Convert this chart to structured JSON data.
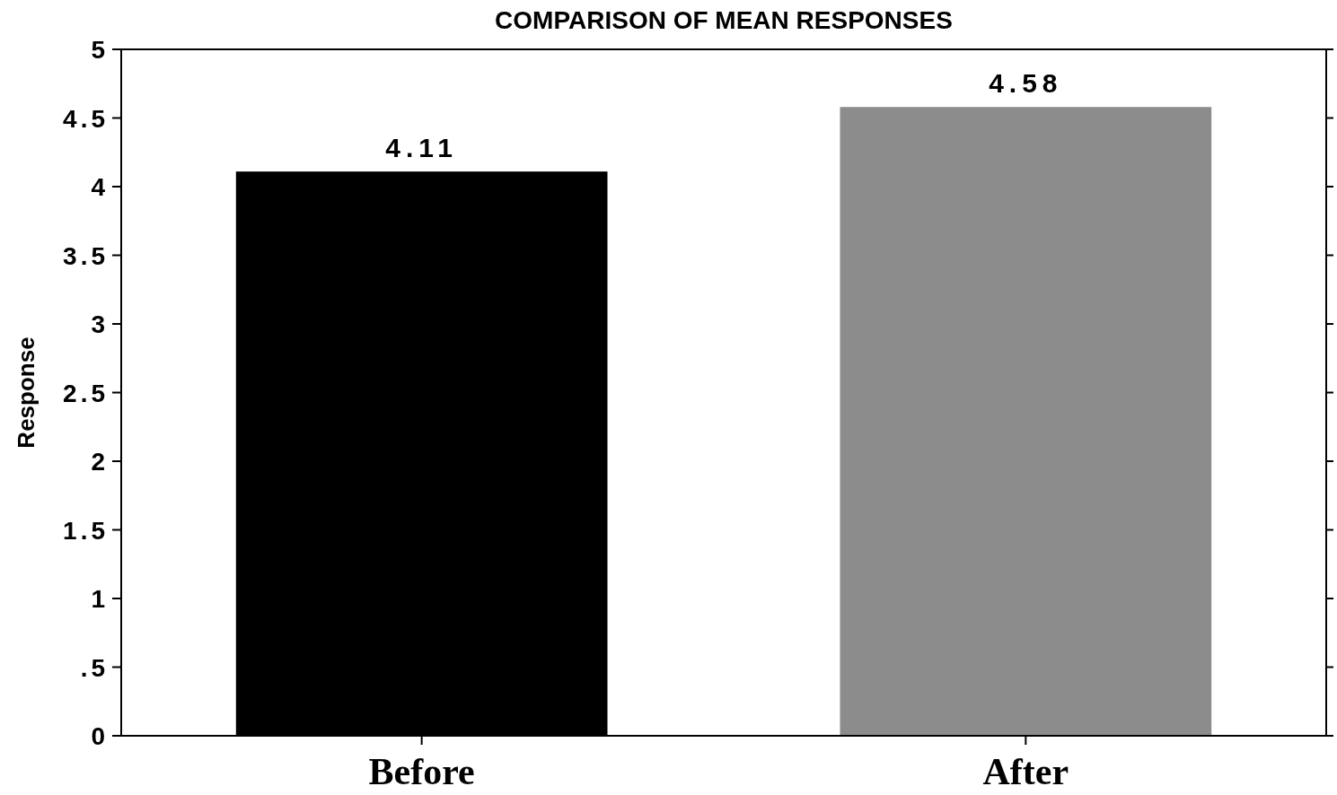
{
  "chart_data": {
    "type": "bar",
    "title": "COMPARISON OF MEAN RESPONSES",
    "ylabel": "Response",
    "categories": [
      "Before",
      "After"
    ],
    "values": [
      4.11,
      4.58
    ],
    "colors": [
      "#000000",
      "#8c8c8c"
    ],
    "ylim": [
      0,
      5
    ],
    "yticks": [
      0,
      {
        "value": 0.5,
        "label": ".5"
      },
      1,
      1.5,
      2,
      2.5,
      3,
      3.5,
      4,
      4.5,
      5
    ],
    "data_labels": true,
    "grid": false
  }
}
